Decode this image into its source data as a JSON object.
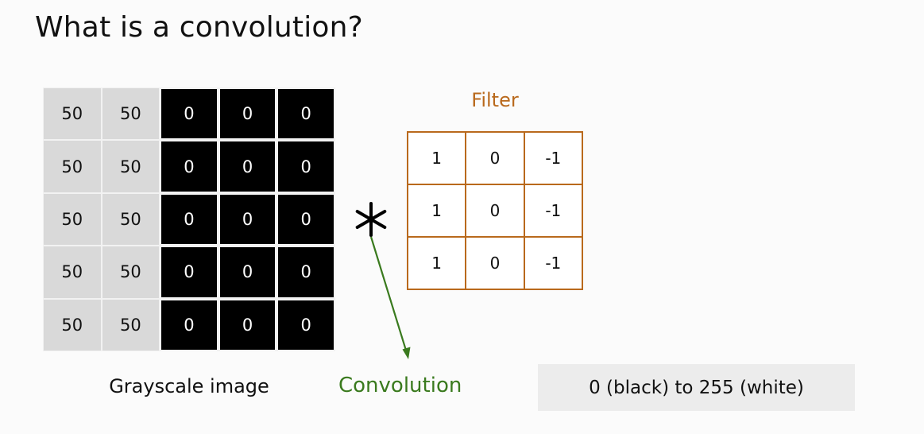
{
  "title": "What is a convolution?",
  "image": {
    "caption": "Grayscale image",
    "rows": [
      [
        "50",
        "50",
        "0",
        "0",
        "0"
      ],
      [
        "50",
        "50",
        "0",
        "0",
        "0"
      ],
      [
        "50",
        "50",
        "0",
        "0",
        "0"
      ],
      [
        "50",
        "50",
        "0",
        "0",
        "0"
      ],
      [
        "50",
        "50",
        "0",
        "0",
        "0"
      ]
    ]
  },
  "operator": {
    "symbol": "*",
    "label": "Convolution"
  },
  "filter": {
    "title": "Filter",
    "rows": [
      [
        "1",
        "0",
        "-1"
      ],
      [
        "1",
        "0",
        "-1"
      ],
      [
        "1",
        "0",
        "-1"
      ]
    ]
  },
  "range_note": "0 (black) to 255 (white)",
  "colors": {
    "filter_accent": "#b9691c",
    "convolution_green": "#3a7a1e",
    "gray_cell": "#d9d9d9",
    "black_cell": "#000000"
  }
}
